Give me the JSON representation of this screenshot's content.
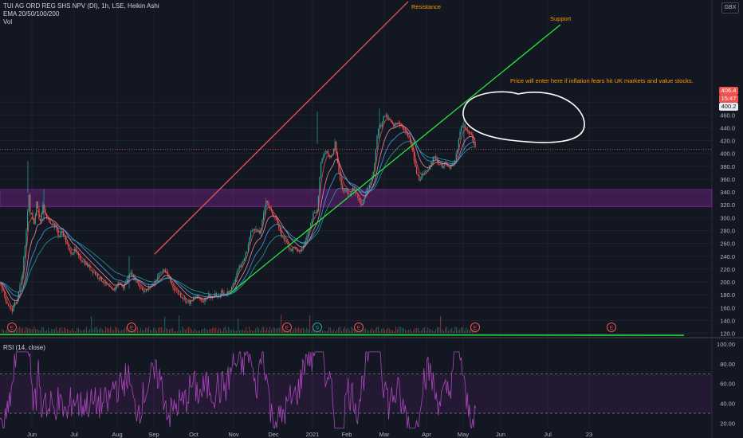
{
  "header": {
    "symbol_line": "TUI AG ORD REG SHS NPV (DI), 1h, LSE, Heikin Ashi",
    "ema_line": "EMA 20/50/100/200",
    "vol_line": "Vol",
    "currency": "GBX"
  },
  "price_tags": {
    "current": "406.4",
    "countdown": "15:47",
    "ema": "400.2"
  },
  "rsi_label": "RSI (14, close)",
  "colors": {
    "background": "#131722",
    "resistance": "#ef5350",
    "support": "#26e63a",
    "zone": "#9c27b0",
    "rsi": "#ab47bc",
    "annotation": "#ff9800",
    "candle_up": "#26a69a",
    "candle_down": "#ef5350"
  },
  "chart_data": {
    "type": "line",
    "title": "TUI AG ORD REG SHS NPV (DI), 1h, LSE, Heikin Ashi",
    "x_ticks": [
      "Jun",
      "Jul",
      "Aug",
      "Sep",
      "Oct",
      "Nov",
      "Dec",
      "2021",
      "Feb",
      "Mar",
      "Apr",
      "May",
      "Jun",
      "Jul",
      "23"
    ],
    "y_ticks": [
      120,
      140,
      160,
      180,
      200,
      220,
      240,
      260,
      280,
      300,
      320,
      340,
      360,
      380,
      400,
      420,
      440,
      460,
      480
    ],
    "ylim": [
      112,
      500
    ],
    "series": [
      {
        "points": [
          [
            0,
            200
          ],
          [
            5,
            180
          ],
          [
            8,
            170
          ],
          [
            12,
            160
          ],
          [
            15,
            155
          ],
          [
            18,
            165
          ],
          [
            22,
            175
          ],
          [
            25,
            195
          ],
          [
            28,
            210
          ],
          [
            30,
            240
          ],
          [
            32,
            260
          ],
          [
            34,
            300
          ],
          [
            36,
            340
          ],
          [
            38,
            300
          ],
          [
            40,
            310
          ],
          [
            42,
            290
          ],
          [
            44,
            300
          ],
          [
            46,
            330
          ],
          [
            48,
            310
          ],
          [
            50,
            290
          ],
          [
            54,
            320
          ],
          [
            58,
            300
          ],
          [
            62,
            295
          ],
          [
            66,
            290
          ],
          [
            70,
            285
          ],
          [
            74,
            270
          ],
          [
            78,
            280
          ],
          [
            82,
            265
          ],
          [
            86,
            250
          ],
          [
            90,
            245
          ],
          [
            94,
            250
          ],
          [
            98,
            240
          ],
          [
            102,
            235
          ],
          [
            106,
            230
          ],
          [
            110,
            225
          ],
          [
            114,
            220
          ],
          [
            118,
            215
          ],
          [
            122,
            210
          ],
          [
            126,
            205
          ],
          [
            130,
            200
          ],
          [
            134,
            195
          ],
          [
            138,
            190
          ],
          [
            142,
            185
          ],
          [
            146,
            195
          ],
          [
            150,
            200
          ],
          [
            154,
            190
          ],
          [
            158,
            200
          ],
          [
            162,
            215
          ],
          [
            166,
            210
          ],
          [
            170,
            205
          ],
          [
            174,
            195
          ],
          [
            178,
            190
          ],
          [
            182,
            185
          ],
          [
            186,
            190
          ],
          [
            190,
            195
          ],
          [
            194,
            200
          ],
          [
            198,
            210
          ],
          [
            202,
            215
          ],
          [
            206,
            220
          ],
          [
            210,
            210
          ],
          [
            214,
            200
          ],
          [
            218,
            190
          ],
          [
            222,
            185
          ],
          [
            226,
            180
          ],
          [
            230,
            175
          ],
          [
            234,
            170
          ],
          [
            238,
            168
          ],
          [
            242,
            172
          ],
          [
            246,
            178
          ],
          [
            250,
            175
          ],
          [
            254,
            170
          ],
          [
            258,
            175
          ],
          [
            262,
            180
          ],
          [
            266,
            175
          ],
          [
            270,
            180
          ],
          [
            274,
            175
          ],
          [
            278,
            185
          ],
          [
            282,
            180
          ],
          [
            286,
            185
          ],
          [
            290,
            190
          ],
          [
            294,
            200
          ],
          [
            298,
            220
          ],
          [
            302,
            225
          ],
          [
            306,
            235
          ],
          [
            310,
            250
          ],
          [
            314,
            275
          ],
          [
            318,
            285
          ],
          [
            322,
            280
          ],
          [
            326,
            275
          ],
          [
            330,
            300
          ],
          [
            334,
            330
          ],
          [
            338,
            315
          ],
          [
            342,
            305
          ],
          [
            346,
            300
          ],
          [
            350,
            280
          ],
          [
            354,
            270
          ],
          [
            358,
            265
          ],
          [
            362,
            255
          ],
          [
            366,
            250
          ],
          [
            370,
            255
          ],
          [
            374,
            245
          ],
          [
            378,
            250
          ],
          [
            382,
            260
          ],
          [
            386,
            275
          ],
          [
            390,
            295
          ],
          [
            394,
            310
          ],
          [
            398,
            310
          ],
          [
            402,
            380
          ],
          [
            406,
            400
          ],
          [
            410,
            405
          ],
          [
            414,
            395
          ],
          [
            418,
            400
          ],
          [
            420,
            420
          ],
          [
            422,
            400
          ],
          [
            426,
            360
          ],
          [
            430,
            340
          ],
          [
            434,
            345
          ],
          [
            438,
            335
          ],
          [
            442,
            345
          ],
          [
            446,
            340
          ],
          [
            450,
            330
          ],
          [
            454,
            320
          ],
          [
            458,
            335
          ],
          [
            462,
            350
          ],
          [
            466,
            360
          ],
          [
            470,
            385
          ],
          [
            474,
            440
          ],
          [
            478,
            445
          ],
          [
            482,
            460
          ],
          [
            486,
            455
          ],
          [
            490,
            450
          ],
          [
            494,
            440
          ],
          [
            498,
            450
          ],
          [
            502,
            445
          ],
          [
            506,
            440
          ],
          [
            510,
            430
          ],
          [
            514,
            420
          ],
          [
            518,
            400
          ],
          [
            522,
            370
          ],
          [
            526,
            360
          ],
          [
            530,
            365
          ],
          [
            534,
            370
          ],
          [
            538,
            380
          ],
          [
            542,
            390
          ],
          [
            546,
            395
          ],
          [
            550,
            385
          ],
          [
            554,
            380
          ],
          [
            558,
            385
          ],
          [
            562,
            378
          ],
          [
            566,
            380
          ],
          [
            570,
            385
          ],
          [
            574,
            410
          ],
          [
            578,
            440
          ],
          [
            582,
            445
          ],
          [
            586,
            435
          ],
          [
            590,
            430
          ],
          [
            594,
            420
          ],
          [
            597,
            406
          ]
        ]
      }
    ],
    "annotations": [
      {
        "text": "Resistance"
      },
      {
        "text": "Support"
      },
      {
        "text": "Price will enter here if inflation fears hit UK markets and value stocks."
      }
    ],
    "event_markers": [
      "E",
      "E",
      "E",
      "S",
      "E",
      "E",
      "E"
    ],
    "rsi": {
      "label": "RSI (14, close)",
      "y_ticks": [
        20,
        40,
        60,
        80,
        100
      ],
      "ylim": [
        10,
        100
      ],
      "band": [
        30,
        70
      ]
    }
  }
}
